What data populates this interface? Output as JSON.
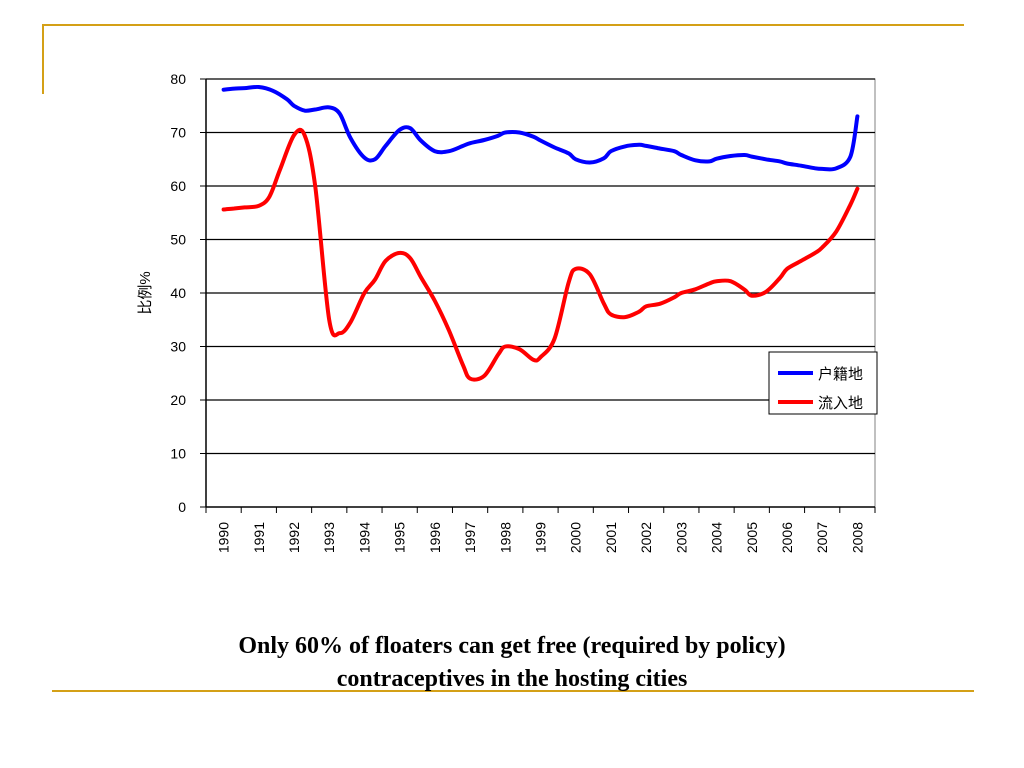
{
  "colors": {
    "accent": "#d4a017",
    "series_blue": "#0000ff",
    "series_red": "#ff0000"
  },
  "caption": {
    "line1": "Only 60% of floaters can get free (required by policy)",
    "line2": "contraceptives in the hosting cities"
  },
  "chart_data": {
    "type": "line",
    "title": "",
    "xlabel": "",
    "ylabel": "比例%",
    "ylim": [
      0,
      80
    ],
    "yticks": [
      0,
      10,
      20,
      30,
      40,
      50,
      60,
      70,
      80
    ],
    "grid": true,
    "legend_position": "right",
    "categories": [
      "1990",
      "1991",
      "1992",
      "1993",
      "1994",
      "1995",
      "1996",
      "1997",
      "1998",
      "1999",
      "2000",
      "2001",
      "2002",
      "2003",
      "2004",
      "2005",
      "2006",
      "2007",
      "2008"
    ],
    "series": [
      {
        "name": "户籍地",
        "color": "#0000ff",
        "x": [
          1990,
          1990.3,
          1990.6,
          1991,
          1991.4,
          1991.8,
          1992,
          1992.3,
          1992.6,
          1993,
          1993.3,
          1993.6,
          1994,
          1994.3,
          1994.6,
          1995,
          1995.3,
          1995.6,
          1996,
          1996.4,
          1996.8,
          1997,
          1997.4,
          1997.8,
          1998,
          1998.4,
          1998.8,
          1999,
          1999.4,
          1999.8,
          2000,
          2000.4,
          2000.8,
          2001,
          2001.4,
          2001.8,
          2002,
          2002.4,
          2002.8,
          2003,
          2003.4,
          2003.8,
          2004,
          2004.4,
          2004.8,
          2005,
          2005.4,
          2005.8,
          2006,
          2006.4,
          2006.8,
          2007,
          2007.4,
          2007.8,
          2008
        ],
        "values": [
          78,
          78.2,
          78.3,
          78.5,
          77.8,
          76.2,
          75,
          74.1,
          74.3,
          74.7,
          73.5,
          69,
          65.3,
          65,
          67.5,
          70.5,
          70.8,
          68.5,
          66.5,
          66.5,
          67.5,
          68,
          68.6,
          69.4,
          70,
          70,
          69.2,
          68.5,
          67.2,
          66.1,
          65,
          64.4,
          65.2,
          66.5,
          67.4,
          67.7,
          67.5,
          67,
          66.5,
          65.8,
          64.8,
          64.6,
          65.1,
          65.6,
          65.8,
          65.5,
          65,
          64.6,
          64.2,
          63.8,
          63.3,
          63.2,
          63.3,
          65.5,
          73
        ]
      },
      {
        "name": "流入地",
        "color": "#ff0000",
        "x": [
          1990,
          1990.3,
          1990.6,
          1991,
          1991.3,
          1991.6,
          1992,
          1992.3,
          1992.6,
          1993,
          1993.3,
          1993.6,
          1994,
          1994.3,
          1994.6,
          1995,
          1995.3,
          1995.6,
          1996,
          1996.4,
          1996.8,
          1997,
          1997.4,
          1997.8,
          1998,
          1998.4,
          1998.8,
          1999,
          1999.4,
          1999.8,
          2000,
          2000.4,
          2000.8,
          2001,
          2001.4,
          2001.8,
          2002,
          2002.4,
          2002.8,
          2003,
          2003.4,
          2003.8,
          2004,
          2004.4,
          2004.8,
          2005,
          2005.4,
          2005.8,
          2006,
          2006.4,
          2006.8,
          2007,
          2007.4,
          2007.8,
          2008
        ],
        "values": [
          55.6,
          55.8,
          56,
          56.3,
          58,
          63,
          69.5,
          69.5,
          60,
          35,
          32.5,
          34.5,
          40,
          42.5,
          46,
          47.5,
          46.5,
          43,
          38.5,
          33,
          26.5,
          24,
          24.5,
          28.5,
          30,
          29.5,
          27.5,
          28,
          31.5,
          42,
          44.5,
          43.5,
          38,
          36,
          35.5,
          36.5,
          37.5,
          38,
          39.2,
          40,
          40.7,
          41.8,
          42.2,
          42.2,
          40.6,
          39.5,
          40.2,
          42.8,
          44.5,
          46,
          47.5,
          48.5,
          51.5,
          56.5,
          59.5
        ]
      }
    ]
  }
}
